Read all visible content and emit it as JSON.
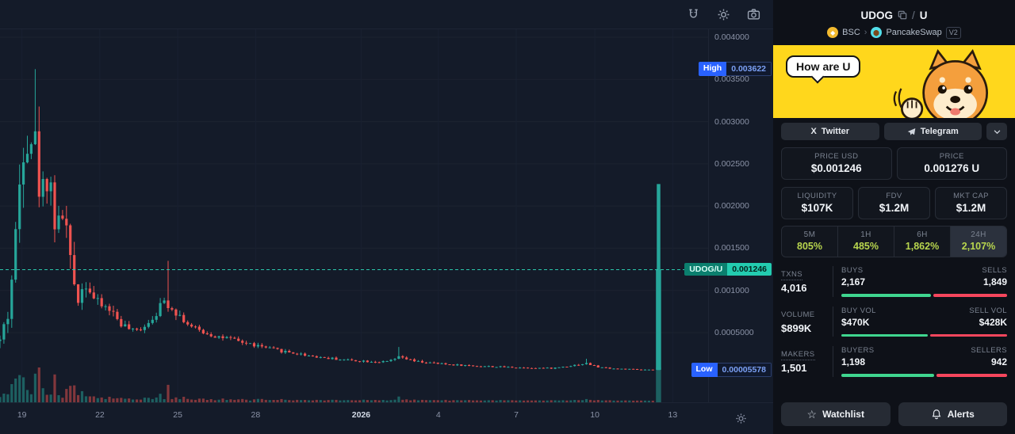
{
  "chart": {
    "badges": {
      "high_label": "High",
      "high_value": "0.003622",
      "low_label": "Low",
      "low_value": "0.00005578",
      "pair_label": "UDOG/U",
      "current_value": "0.001246"
    }
  },
  "chart_data": {
    "type": "candlestick",
    "pair": "UDOG/U",
    "high": 0.003622,
    "low": 5.578e-05,
    "current": 0.001246,
    "y_top": 0.004094,
    "y_bottom": -0.000326,
    "price_ticks": [
      0.004,
      0.0035,
      0.003,
      0.0025,
      0.002,
      0.0015,
      0.001,
      0.0005
    ],
    "price_tick_labels": [
      "0.004000",
      "0.003500",
      "0.003000",
      "0.002500",
      "0.002000",
      "0.001500",
      "0.001000",
      "0.0005000"
    ],
    "time_ticks": [
      {
        "label": "19",
        "x": 0.031
      },
      {
        "label": "22",
        "x": 0.141
      },
      {
        "label": "25",
        "x": 0.251
      },
      {
        "label": "28",
        "x": 0.361
      },
      {
        "label": "2026",
        "x": 0.51,
        "major": true
      },
      {
        "label": "4",
        "x": 0.619
      },
      {
        "label": "7",
        "x": 0.729
      },
      {
        "label": "10",
        "x": 0.84
      },
      {
        "label": "13",
        "x": 0.95
      }
    ],
    "candle_count": 168,
    "x_span": 0.922,
    "seed": 42,
    "close_path": [
      [
        0.0,
        0.0004
      ],
      [
        0.012,
        0.00075
      ],
      [
        0.022,
        0.0016
      ],
      [
        0.034,
        0.003
      ],
      [
        0.048,
        0.00285
      ],
      [
        0.058,
        0.00205
      ],
      [
        0.068,
        0.0025
      ],
      [
        0.08,
        0.00165
      ],
      [
        0.09,
        0.002
      ],
      [
        0.1,
        0.00125
      ],
      [
        0.11,
        0.00092
      ],
      [
        0.122,
        0.00112
      ],
      [
        0.135,
        0.00085
      ],
      [
        0.155,
        0.00078
      ],
      [
        0.172,
        0.0006
      ],
      [
        0.19,
        0.0005
      ],
      [
        0.21,
        0.00063
      ],
      [
        0.233,
        0.00088
      ],
      [
        0.252,
        0.00072
      ],
      [
        0.27,
        0.00056
      ],
      [
        0.3,
        0.00047
      ],
      [
        0.34,
        0.00039
      ],
      [
        0.38,
        0.00031
      ],
      [
        0.42,
        0.00025
      ],
      [
        0.46,
        0.0002
      ],
      [
        0.5,
        0.00017
      ],
      [
        0.545,
        0.00015
      ],
      [
        0.565,
        0.00021
      ],
      [
        0.585,
        0.00016
      ],
      [
        0.62,
        0.00013
      ],
      [
        0.66,
        0.00011
      ],
      [
        0.7,
        9.5e-05
      ],
      [
        0.74,
        8.5e-05
      ],
      [
        0.78,
        7.8e-05
      ],
      [
        0.828,
        0.000135
      ],
      [
        0.845,
        9e-05
      ],
      [
        0.87,
        7.2e-05
      ],
      [
        0.9,
        6.2e-05
      ],
      [
        0.922,
        5.8e-05
      ]
    ],
    "amp_path": [
      [
        0.0,
        0.45
      ],
      [
        0.02,
        0.3
      ],
      [
        0.05,
        0.22
      ],
      [
        0.1,
        0.22
      ],
      [
        0.15,
        0.15
      ],
      [
        0.3,
        0.13
      ],
      [
        0.5,
        0.15
      ],
      [
        0.7,
        0.17
      ],
      [
        0.922,
        0.15
      ]
    ],
    "spikes": [
      {
        "x": 0.048,
        "high": 0.003622
      },
      {
        "x": 0.235,
        "high": 0.00135
      },
      {
        "x": 0.565,
        "high": 0.00033
      },
      {
        "x": 0.828,
        "high": 0.00019
      }
    ],
    "last_candle": {
      "x": 0.93,
      "open": 6e-05,
      "high": 0.00226,
      "low": 5.578e-05,
      "close": 0.001246
    },
    "colors": {
      "up": "#26a69a",
      "down": "#ef5350",
      "grid": "#1c2330",
      "grid_v": "#182031",
      "price_line": "#2bc6ab"
    }
  },
  "panel": {
    "token": "UDOG",
    "separator": "/",
    "quote": "U",
    "chain": "BSC",
    "breadcrumb_sep": "›",
    "dex": "PancakeSwap",
    "version": "V2",
    "banner": {
      "bubble_text": "How are U"
    },
    "social": [
      {
        "label": "Twitter"
      },
      {
        "label": "Telegram"
      }
    ],
    "price_usd": {
      "label": "PRICE USD",
      "value": "$0.001246"
    },
    "price_native": {
      "label": "PRICE",
      "value": "0.001276 U"
    },
    "liquidity": {
      "label": "LIQUIDITY",
      "value": "$107K"
    },
    "fdv": {
      "label": "FDV",
      "value": "$1.2M"
    },
    "mktcap": {
      "label": "MKT CAP",
      "value": "$1.2M"
    },
    "timeframes": [
      {
        "label": "5M",
        "value": "805%"
      },
      {
        "label": "1H",
        "value": "485%"
      },
      {
        "label": "6H",
        "value": "1,862%"
      },
      {
        "label": "24H",
        "value": "2,107%"
      }
    ],
    "txns": {
      "label": "TXNS",
      "value": "4,016",
      "buys_label": "BUYS",
      "buys": "2,167",
      "sells_label": "SELLS",
      "sells": "1,849",
      "buy_pct": 54
    },
    "volume": {
      "label": "VOLUME",
      "value": "$899K",
      "buys_label": "BUY VOL",
      "buys": "$470K",
      "sells_label": "SELL VOL",
      "sells": "$428K",
      "buy_pct": 52
    },
    "makers": {
      "label": "MAKERS",
      "value": "1,501",
      "buys_label": "BUYERS",
      "buys": "1,198",
      "sells_label": "SELLERS",
      "sells": "942",
      "buy_pct": 56
    },
    "watchlist_label": "Watchlist",
    "alerts_label": "Alerts",
    "colors": {
      "pct_up_text": "#b8d64e",
      "bar_buy": "#3fd68f",
      "bar_sell": "#f6465d",
      "accent_teal": "#23ccb0",
      "badge_blue": "#2962ff"
    }
  }
}
